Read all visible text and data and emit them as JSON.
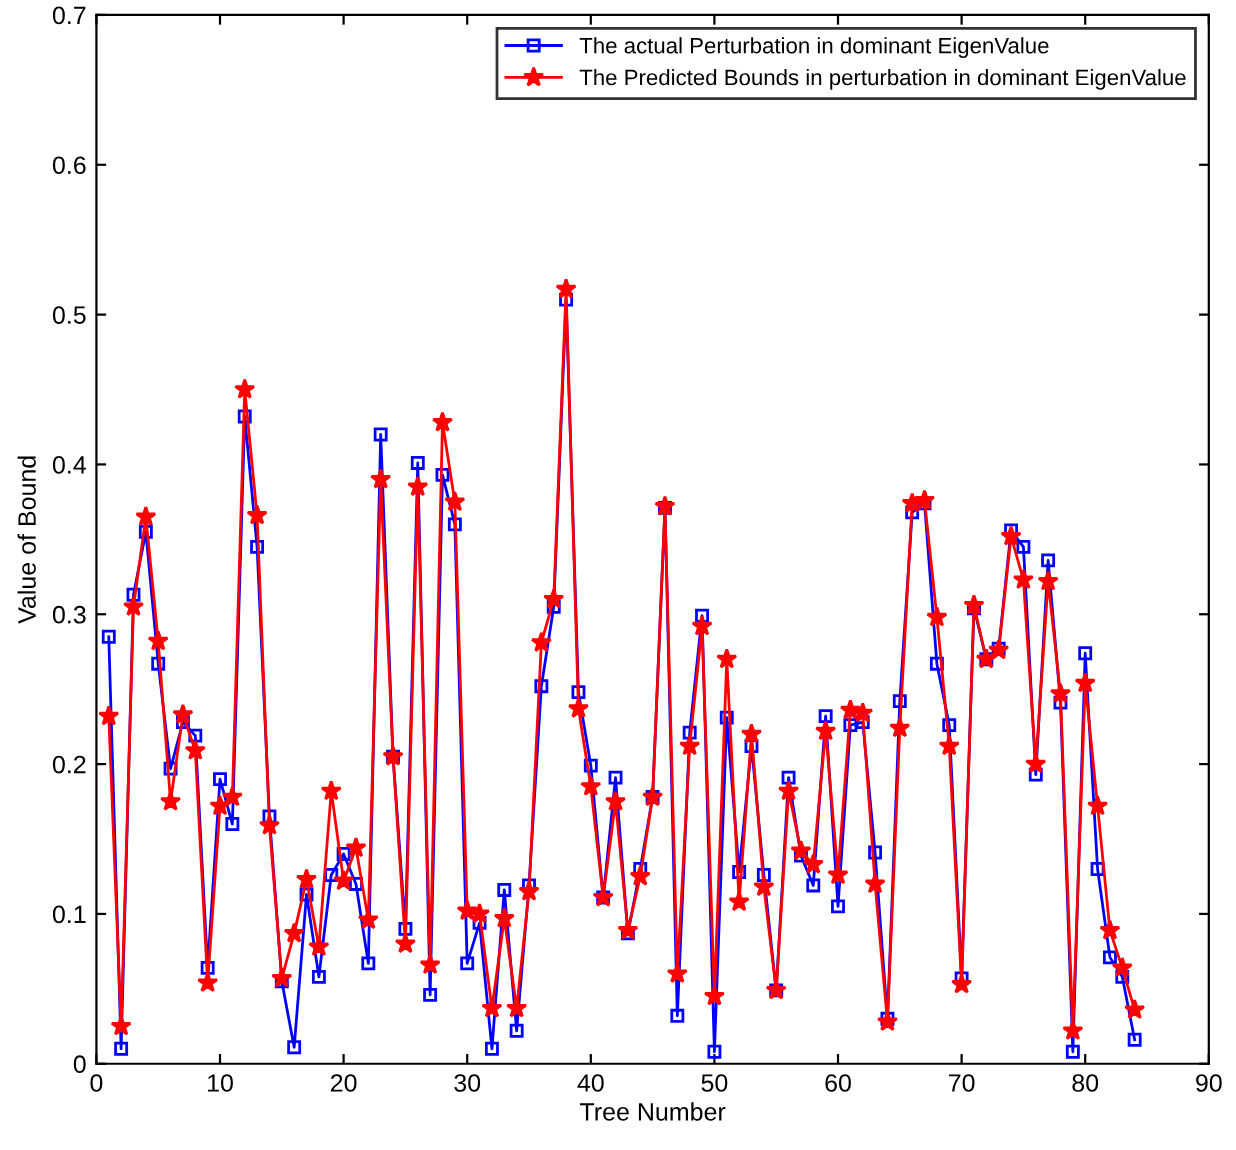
{
  "chart_data": {
    "type": "line",
    "xlabel": "Tree Number",
    "ylabel": "Value of Bound",
    "x": [
      1,
      2,
      3,
      4,
      5,
      6,
      7,
      8,
      9,
      10,
      11,
      12,
      13,
      14,
      15,
      16,
      17,
      18,
      19,
      20,
      21,
      22,
      23,
      24,
      25,
      26,
      27,
      28,
      29,
      30,
      31,
      32,
      33,
      34,
      35,
      36,
      37,
      38,
      39,
      40,
      41,
      42,
      43,
      44,
      45,
      46,
      47,
      48,
      49,
      50,
      51,
      52,
      53,
      54,
      55,
      56,
      57,
      58,
      59,
      60,
      61,
      62,
      63,
      64,
      65,
      66,
      67,
      68,
      69,
      70,
      71,
      72,
      73,
      74,
      75,
      76,
      77,
      78,
      79,
      80,
      81,
      82,
      83,
      84
    ],
    "series": [
      {
        "name": "The actual Perturbation in dominant EigenValue",
        "color": "#0000ff",
        "marker": "square",
        "values": [
          0.285,
          0.01,
          0.313,
          0.355,
          0.267,
          0.197,
          0.228,
          0.219,
          0.064,
          0.19,
          0.16,
          0.432,
          0.345,
          0.165,
          0.055,
          0.011,
          0.113,
          0.058,
          0.126,
          0.14,
          0.12,
          0.067,
          0.42,
          0.205,
          0.09,
          0.401,
          0.046,
          0.393,
          0.36,
          0.067,
          0.094,
          0.01,
          0.116,
          0.022,
          0.119,
          0.252,
          0.305,
          0.51,
          0.248,
          0.199,
          0.111,
          0.191,
          0.087,
          0.13,
          0.178,
          0.371,
          0.032,
          0.221,
          0.299,
          0.008,
          0.231,
          0.128,
          0.212,
          0.126,
          0.049,
          0.191,
          0.139,
          0.119,
          0.232,
          0.105,
          0.226,
          0.228,
          0.141,
          0.03,
          0.242,
          0.368,
          0.374,
          0.267,
          0.226,
          0.057,
          0.304,
          0.27,
          0.277,
          0.356,
          0.345,
          0.193,
          0.336,
          0.241,
          0.008,
          0.274,
          0.13,
          0.071,
          0.058,
          0.016
        ]
      },
      {
        "name": "The Predicted Bounds in perturbation in dominant EigenValue",
        "color": "#ff0000",
        "marker": "star",
        "values": [
          0.232,
          0.025,
          0.305,
          0.365,
          0.282,
          0.175,
          0.233,
          0.209,
          0.054,
          0.172,
          0.178,
          0.45,
          0.366,
          0.159,
          0.057,
          0.087,
          0.123,
          0.078,
          0.182,
          0.122,
          0.144,
          0.096,
          0.39,
          0.205,
          0.08,
          0.385,
          0.066,
          0.428,
          0.375,
          0.102,
          0.1,
          0.037,
          0.097,
          0.037,
          0.115,
          0.281,
          0.31,
          0.517,
          0.237,
          0.185,
          0.111,
          0.175,
          0.089,
          0.125,
          0.178,
          0.372,
          0.06,
          0.212,
          0.292,
          0.045,
          0.27,
          0.108,
          0.22,
          0.118,
          0.049,
          0.182,
          0.142,
          0.133,
          0.222,
          0.126,
          0.236,
          0.234,
          0.12,
          0.028,
          0.224,
          0.374,
          0.376,
          0.298,
          0.212,
          0.053,
          0.306,
          0.27,
          0.276,
          0.352,
          0.323,
          0.2,
          0.322,
          0.247,
          0.022,
          0.254,
          0.172,
          0.089,
          0.064,
          0.036
        ]
      }
    ],
    "xlim": [
      0,
      90
    ],
    "xticks": [
      0,
      10,
      20,
      30,
      40,
      50,
      60,
      70,
      80,
      90
    ],
    "ylim": [
      0,
      0.7
    ],
    "yticks": [
      0,
      0.1,
      0.2,
      0.3,
      0.4,
      0.5,
      0.6,
      0.7
    ],
    "grid": false,
    "legend": "top right",
    "line_style": "solid"
  }
}
